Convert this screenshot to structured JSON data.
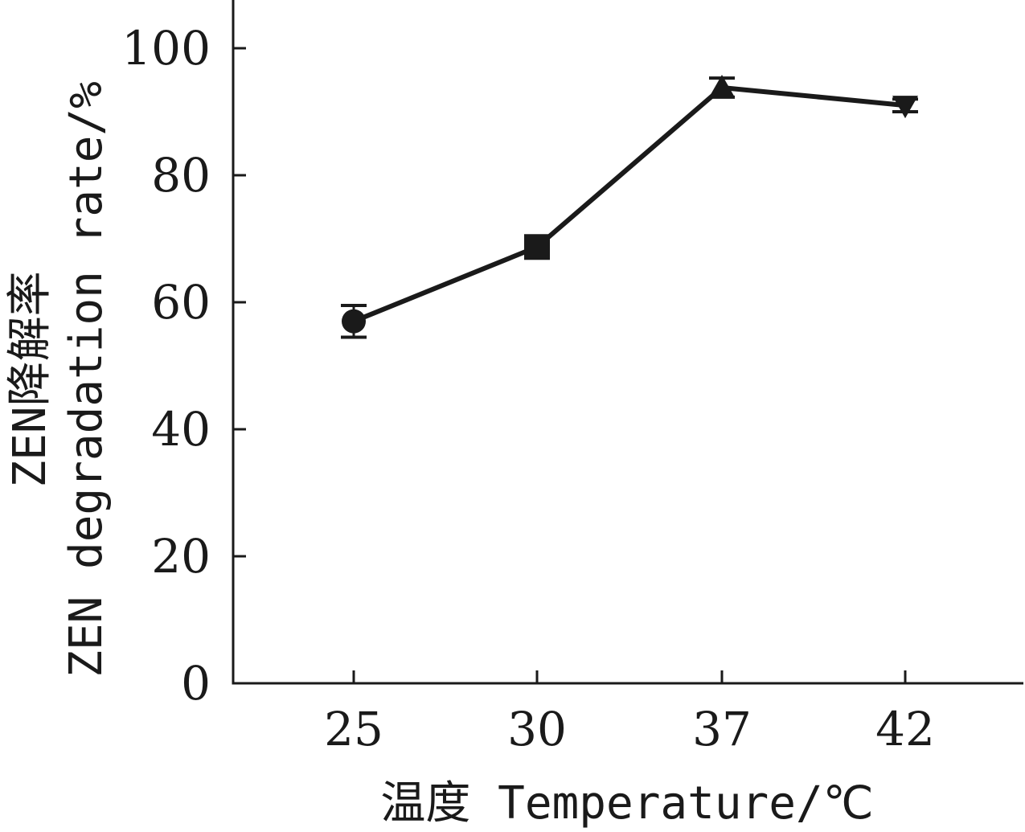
{
  "chart_data": {
    "type": "line",
    "categories": [
      "25",
      "30",
      "37",
      "42"
    ],
    "ylim": [
      0,
      100
    ],
    "y_ticks": [
      0,
      20,
      40,
      60,
      80,
      100
    ],
    "xlabel": "温度 Temperature/℃",
    "ylabel_line1": "ZEN降解率",
    "ylabel_line2": "ZEN degradation rate/%",
    "series": [
      {
        "values": [
          57,
          68.7,
          93.8,
          91
        ],
        "errors": [
          2.5,
          1.0,
          1.5,
          1.0
        ],
        "markers": [
          "circle",
          "square",
          "triangle-up",
          "triangle-down"
        ]
      }
    ],
    "grid": false,
    "legend": "none",
    "line_color": "#1a1a1a"
  }
}
